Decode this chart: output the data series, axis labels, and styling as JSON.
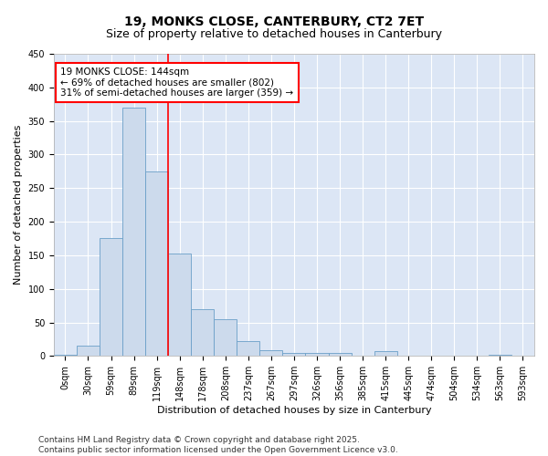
{
  "title_line1": "19, MONKS CLOSE, CANTERBURY, CT2 7ET",
  "title_line2": "Size of property relative to detached houses in Canterbury",
  "xlabel": "Distribution of detached houses by size in Canterbury",
  "ylabel": "Number of detached properties",
  "bin_labels": [
    "0sqm",
    "30sqm",
    "59sqm",
    "89sqm",
    "119sqm",
    "148sqm",
    "178sqm",
    "208sqm",
    "237sqm",
    "267sqm",
    "297sqm",
    "326sqm",
    "356sqm",
    "385sqm",
    "415sqm",
    "445sqm",
    "474sqm",
    "504sqm",
    "534sqm",
    "563sqm",
    "593sqm"
  ],
  "bar_values": [
    2,
    15,
    175,
    370,
    275,
    152,
    70,
    55,
    22,
    8,
    5,
    5,
    5,
    0,
    7,
    0,
    0,
    0,
    0,
    2,
    0
  ],
  "bar_color": "#ccdaec",
  "bar_edge_color": "#6a9fc8",
  "vline_color": "red",
  "annotation_text": "19 MONKS CLOSE: 144sqm\n← 69% of detached houses are smaller (802)\n31% of semi-detached houses are larger (359) →",
  "annotation_box_color": "white",
  "annotation_box_edge": "red",
  "ylim": [
    0,
    450
  ],
  "yticks": [
    0,
    50,
    100,
    150,
    200,
    250,
    300,
    350,
    400,
    450
  ],
  "bg_color": "#dce6f5",
  "footer_text": "Contains HM Land Registry data © Crown copyright and database right 2025.\nContains public sector information licensed under the Open Government Licence v3.0.",
  "title_fontsize": 10,
  "subtitle_fontsize": 9,
  "axis_fontsize": 8,
  "tick_fontsize": 7,
  "annotation_fontsize": 7.5,
  "footer_fontsize": 6.5
}
